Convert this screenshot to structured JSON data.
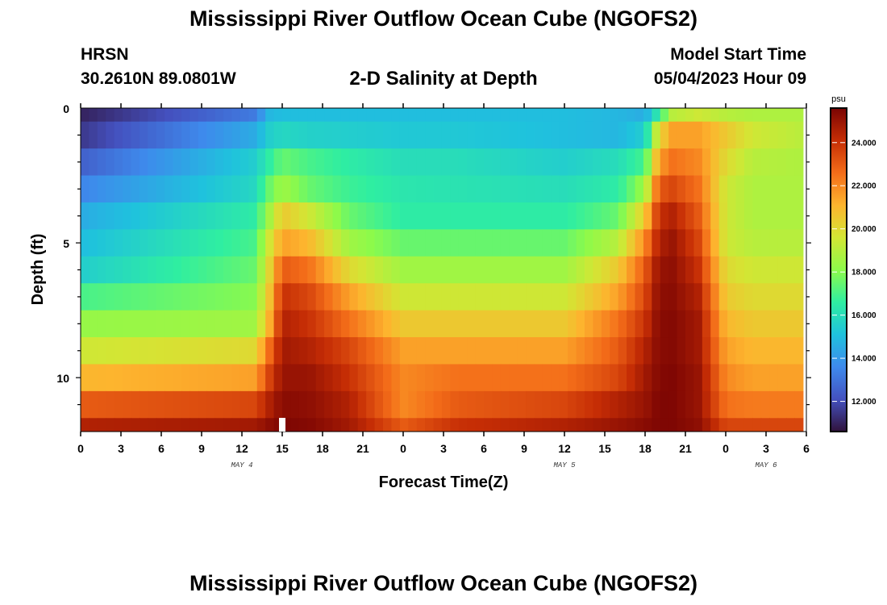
{
  "header": {
    "title": "Mississippi River Outflow Ocean Cube (NGOFS2)",
    "station": "HRSN",
    "coords": "30.2610N  89.0801W",
    "subtitle": "2-D Salinity at Depth",
    "start_label": "Model Start Time",
    "start_value": "05/04/2023 Hour 09"
  },
  "footer": {
    "title": "Mississippi River Outflow Ocean Cube (NGOFS2)"
  },
  "chart_data": {
    "type": "heatmap",
    "title": "2-D Salinity at Depth",
    "xlabel": "Forecast Time(Z)",
    "ylabel": "Depth (ft)",
    "x_range_hours": [
      0,
      54
    ],
    "depth_range_ft": [
      0,
      12
    ],
    "x_tick_labels": [
      "0",
      "3",
      "6",
      "9",
      "12",
      "15",
      "18",
      "21",
      "0",
      "3",
      "6",
      "9",
      "12",
      "15",
      "18",
      "21",
      "0",
      "3",
      "6"
    ],
    "y_tick_labels": [
      "0",
      "5",
      "10"
    ],
    "y_ticks_ft": [
      0,
      5,
      10
    ],
    "day_labels": [
      "MAY 4",
      "MAY 5",
      "MAY 6"
    ],
    "day_label_hours": [
      12,
      36,
      51
    ],
    "now_marker_hour": 15,
    "colorbar": {
      "unit": "psu",
      "min": 10.6,
      "max": 25.6,
      "tick_labels": [
        "12.000",
        "14.000",
        "16.000",
        "18.000",
        "20.000",
        "22.000",
        "24.000"
      ],
      "tick_values": [
        12,
        14,
        16,
        18,
        20,
        22,
        24
      ]
    },
    "layer_bounds_ft": [
      0,
      0.5,
      1.5,
      2.5,
      3.5,
      4.5,
      5.5,
      6.5,
      7.5,
      8.5,
      9.5,
      10.5,
      11.5,
      12
    ],
    "hours": [
      0,
      13,
      14,
      15,
      17,
      20,
      24,
      28,
      36,
      40,
      42,
      43,
      44,
      46,
      48,
      50,
      54
    ],
    "salinity_psu": [
      [
        11.0,
        13.2,
        14.8,
        15.0,
        15.0,
        15.0,
        15.0,
        15.0,
        15.0,
        14.8,
        14.5,
        16.5,
        19.0,
        19.5,
        19.0,
        18.8,
        18.8
      ],
      [
        11.5,
        14.5,
        15.5,
        15.8,
        15.6,
        15.5,
        15.3,
        15.3,
        15.0,
        14.8,
        15.5,
        20.0,
        21.5,
        21.5,
        20.5,
        19.5,
        19.0
      ],
      [
        12.5,
        15.5,
        16.5,
        17.5,
        17.0,
        16.5,
        16.0,
        16.0,
        15.5,
        16.0,
        17.0,
        21.5,
        22.5,
        22.0,
        20.0,
        19.0,
        18.8
      ],
      [
        13.5,
        15.8,
        17.5,
        18.5,
        17.5,
        16.8,
        16.3,
        16.2,
        16.0,
        16.5,
        18.5,
        23.0,
        23.5,
        22.5,
        19.5,
        18.8,
        18.8
      ],
      [
        14.5,
        16.5,
        18.5,
        20.5,
        19.5,
        17.5,
        16.5,
        16.5,
        16.5,
        17.5,
        20.5,
        24.0,
        24.5,
        23.0,
        19.5,
        18.8,
        18.8
      ],
      [
        15.0,
        17.0,
        19.5,
        21.5,
        21.0,
        18.5,
        17.5,
        17.5,
        17.5,
        19.0,
        22.0,
        24.5,
        25.0,
        23.5,
        19.5,
        19.0,
        19.0
      ],
      [
        15.5,
        17.5,
        20.0,
        23.0,
        22.5,
        20.0,
        18.5,
        18.5,
        18.5,
        20.5,
        23.0,
        25.0,
        25.2,
        24.0,
        20.0,
        19.5,
        19.5
      ],
      [
        17.0,
        18.0,
        20.5,
        24.0,
        23.5,
        21.5,
        19.5,
        19.5,
        19.5,
        21.5,
        23.5,
        25.2,
        25.3,
        24.5,
        20.5,
        20.0,
        20.0
      ],
      [
        18.3,
        18.5,
        21.0,
        24.5,
        24.0,
        22.5,
        20.5,
        20.5,
        20.5,
        22.5,
        24.0,
        25.3,
        25.4,
        24.8,
        21.0,
        20.5,
        20.5
      ],
      [
        19.5,
        20.0,
        22.5,
        24.8,
        24.5,
        23.5,
        21.5,
        21.5,
        21.5,
        23.0,
        24.5,
        25.3,
        25.4,
        24.8,
        21.5,
        21.0,
        21.0
      ],
      [
        21.0,
        21.5,
        23.5,
        25.0,
        25.0,
        24.0,
        22.0,
        22.5,
        22.5,
        23.5,
        24.8,
        25.4,
        25.5,
        25.0,
        22.0,
        21.5,
        21.5
      ],
      [
        23.0,
        23.5,
        24.5,
        25.3,
        25.2,
        24.5,
        22.0,
        23.0,
        23.5,
        24.5,
        25.0,
        25.5,
        25.5,
        25.0,
        22.5,
        22.3,
        22.3
      ],
      [
        24.5,
        24.8,
        25.2,
        25.5,
        25.4,
        24.8,
        23.0,
        24.0,
        24.5,
        25.0,
        25.3,
        25.5,
        25.5,
        25.2,
        23.5,
        23.5,
        23.5
      ]
    ]
  }
}
